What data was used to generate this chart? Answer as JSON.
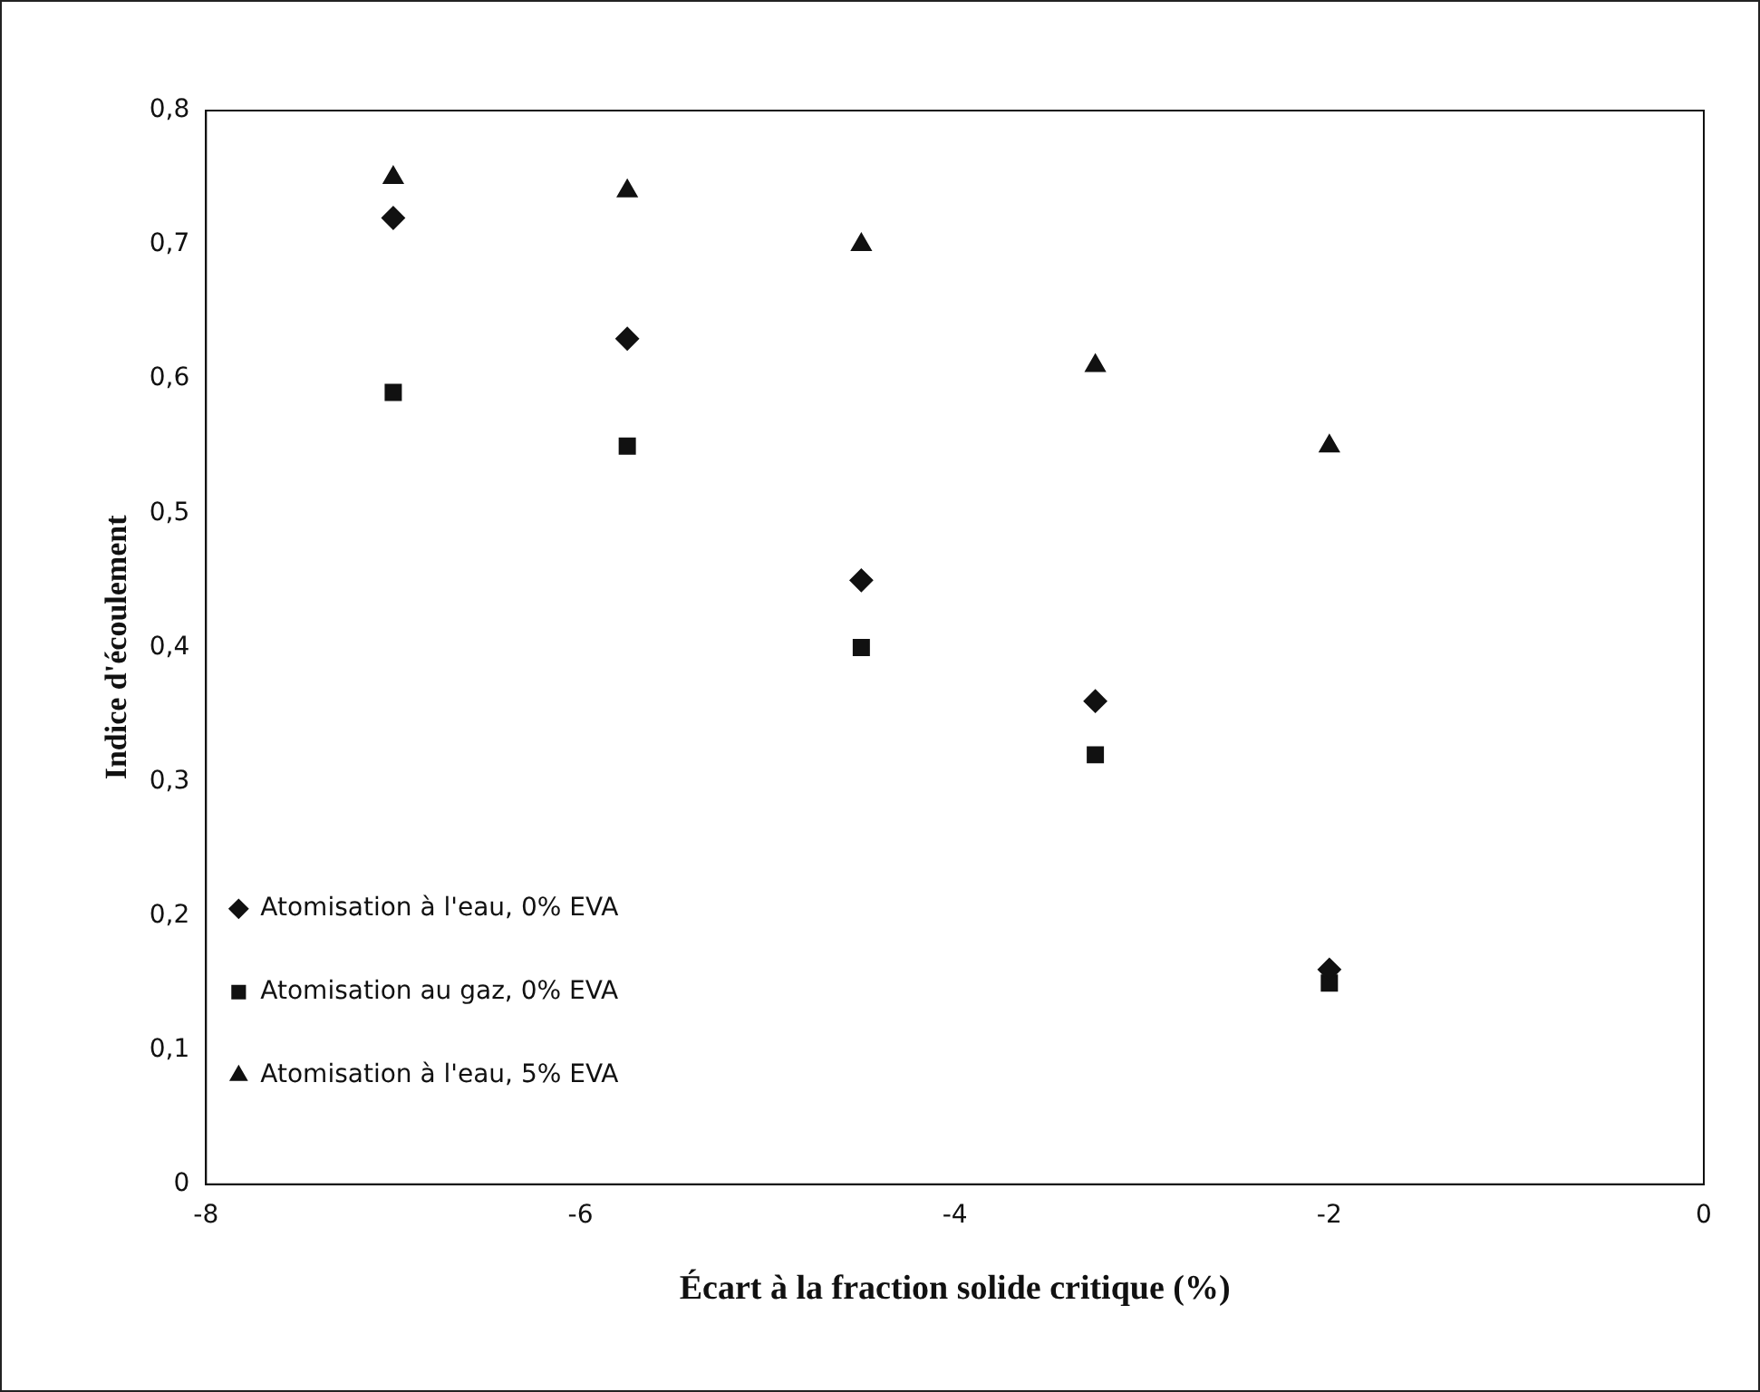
{
  "chart_data": {
    "type": "scatter",
    "xlabel": "Écart à la fraction solide critique (%)",
    "ylabel": "Indice d'écoulement",
    "xlim": [
      -8,
      0
    ],
    "xticks": [
      -8,
      -6,
      -4,
      -2,
      0
    ],
    "ylim": [
      0,
      0.8
    ],
    "yticks": [
      0,
      {
        "value": 0.1,
        "label": "0,1"
      },
      {
        "value": 0.2,
        "label": "0,2"
      },
      {
        "value": 0.3,
        "label": "0,3"
      },
      {
        "value": 0.4,
        "label": "0,4"
      },
      {
        "value": 0.5,
        "label": "0,5"
      },
      {
        "value": 0.6,
        "label": "0,6"
      },
      {
        "value": 0.7,
        "label": "0,7"
      },
      {
        "value": 0.8,
        "label": "0,8"
      }
    ],
    "grid": false,
    "legend": "bottom left",
    "series": [
      {
        "name": "Atomisation à l'eau, 0% EVA",
        "color": "#111111",
        "marker": "diamond",
        "x": [
          -7,
          -5.75,
          -4.5,
          -3.25,
          -2
        ],
        "values": [
          0.72,
          0.63,
          0.45,
          0.36,
          0.16
        ]
      },
      {
        "name": "Atomisation au gaz, 0% EVA",
        "color": "#111111",
        "marker": "square",
        "x": [
          -7,
          -5.75,
          -4.5,
          -3.25,
          -2
        ],
        "values": [
          0.59,
          0.55,
          0.4,
          0.32,
          0.15
        ]
      },
      {
        "name": "Atomisation à l'eau, 5% EVA",
        "color": "#111111",
        "marker": "triangle",
        "x": [
          -7,
          -5.75,
          -4.5,
          -3.25,
          -2
        ],
        "values": [
          0.75,
          0.74,
          0.7,
          0.61,
          0.55
        ]
      }
    ]
  }
}
